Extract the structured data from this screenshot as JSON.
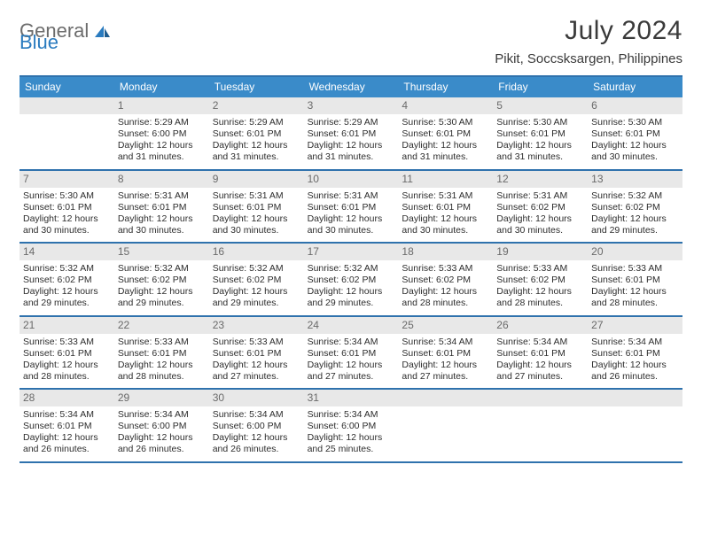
{
  "brand": {
    "word1": "General",
    "word2": "Blue"
  },
  "title": {
    "month": "July 2024",
    "location": "Pikit, Soccsksargen, Philippines"
  },
  "colors": {
    "header_bg": "#3a8bc9",
    "border": "#2f72ad",
    "daynum_bg": "#e8e8e8",
    "daynum_fg": "#6a6a6a",
    "text": "#2d2d2d",
    "logo_gray": "#6c6c6c",
    "logo_blue": "#2a7bbf"
  },
  "days_of_week": [
    "Sunday",
    "Monday",
    "Tuesday",
    "Wednesday",
    "Thursday",
    "Friday",
    "Saturday"
  ],
  "weeks": [
    [
      {
        "day": "",
        "empty": true
      },
      {
        "day": "1",
        "sunrise": "Sunrise: 5:29 AM",
        "sunset": "Sunset: 6:00 PM",
        "daylight1": "Daylight: 12 hours",
        "daylight2": "and 31 minutes."
      },
      {
        "day": "2",
        "sunrise": "Sunrise: 5:29 AM",
        "sunset": "Sunset: 6:01 PM",
        "daylight1": "Daylight: 12 hours",
        "daylight2": "and 31 minutes."
      },
      {
        "day": "3",
        "sunrise": "Sunrise: 5:29 AM",
        "sunset": "Sunset: 6:01 PM",
        "daylight1": "Daylight: 12 hours",
        "daylight2": "and 31 minutes."
      },
      {
        "day": "4",
        "sunrise": "Sunrise: 5:30 AM",
        "sunset": "Sunset: 6:01 PM",
        "daylight1": "Daylight: 12 hours",
        "daylight2": "and 31 minutes."
      },
      {
        "day": "5",
        "sunrise": "Sunrise: 5:30 AM",
        "sunset": "Sunset: 6:01 PM",
        "daylight1": "Daylight: 12 hours",
        "daylight2": "and 31 minutes."
      },
      {
        "day": "6",
        "sunrise": "Sunrise: 5:30 AM",
        "sunset": "Sunset: 6:01 PM",
        "daylight1": "Daylight: 12 hours",
        "daylight2": "and 30 minutes."
      }
    ],
    [
      {
        "day": "7",
        "sunrise": "Sunrise: 5:30 AM",
        "sunset": "Sunset: 6:01 PM",
        "daylight1": "Daylight: 12 hours",
        "daylight2": "and 30 minutes."
      },
      {
        "day": "8",
        "sunrise": "Sunrise: 5:31 AM",
        "sunset": "Sunset: 6:01 PM",
        "daylight1": "Daylight: 12 hours",
        "daylight2": "and 30 minutes."
      },
      {
        "day": "9",
        "sunrise": "Sunrise: 5:31 AM",
        "sunset": "Sunset: 6:01 PM",
        "daylight1": "Daylight: 12 hours",
        "daylight2": "and 30 minutes."
      },
      {
        "day": "10",
        "sunrise": "Sunrise: 5:31 AM",
        "sunset": "Sunset: 6:01 PM",
        "daylight1": "Daylight: 12 hours",
        "daylight2": "and 30 minutes."
      },
      {
        "day": "11",
        "sunrise": "Sunrise: 5:31 AM",
        "sunset": "Sunset: 6:01 PM",
        "daylight1": "Daylight: 12 hours",
        "daylight2": "and 30 minutes."
      },
      {
        "day": "12",
        "sunrise": "Sunrise: 5:31 AM",
        "sunset": "Sunset: 6:02 PM",
        "daylight1": "Daylight: 12 hours",
        "daylight2": "and 30 minutes."
      },
      {
        "day": "13",
        "sunrise": "Sunrise: 5:32 AM",
        "sunset": "Sunset: 6:02 PM",
        "daylight1": "Daylight: 12 hours",
        "daylight2": "and 29 minutes."
      }
    ],
    [
      {
        "day": "14",
        "sunrise": "Sunrise: 5:32 AM",
        "sunset": "Sunset: 6:02 PM",
        "daylight1": "Daylight: 12 hours",
        "daylight2": "and 29 minutes."
      },
      {
        "day": "15",
        "sunrise": "Sunrise: 5:32 AM",
        "sunset": "Sunset: 6:02 PM",
        "daylight1": "Daylight: 12 hours",
        "daylight2": "and 29 minutes."
      },
      {
        "day": "16",
        "sunrise": "Sunrise: 5:32 AM",
        "sunset": "Sunset: 6:02 PM",
        "daylight1": "Daylight: 12 hours",
        "daylight2": "and 29 minutes."
      },
      {
        "day": "17",
        "sunrise": "Sunrise: 5:32 AM",
        "sunset": "Sunset: 6:02 PM",
        "daylight1": "Daylight: 12 hours",
        "daylight2": "and 29 minutes."
      },
      {
        "day": "18",
        "sunrise": "Sunrise: 5:33 AM",
        "sunset": "Sunset: 6:02 PM",
        "daylight1": "Daylight: 12 hours",
        "daylight2": "and 28 minutes."
      },
      {
        "day": "19",
        "sunrise": "Sunrise: 5:33 AM",
        "sunset": "Sunset: 6:02 PM",
        "daylight1": "Daylight: 12 hours",
        "daylight2": "and 28 minutes."
      },
      {
        "day": "20",
        "sunrise": "Sunrise: 5:33 AM",
        "sunset": "Sunset: 6:01 PM",
        "daylight1": "Daylight: 12 hours",
        "daylight2": "and 28 minutes."
      }
    ],
    [
      {
        "day": "21",
        "sunrise": "Sunrise: 5:33 AM",
        "sunset": "Sunset: 6:01 PM",
        "daylight1": "Daylight: 12 hours",
        "daylight2": "and 28 minutes."
      },
      {
        "day": "22",
        "sunrise": "Sunrise: 5:33 AM",
        "sunset": "Sunset: 6:01 PM",
        "daylight1": "Daylight: 12 hours",
        "daylight2": "and 28 minutes."
      },
      {
        "day": "23",
        "sunrise": "Sunrise: 5:33 AM",
        "sunset": "Sunset: 6:01 PM",
        "daylight1": "Daylight: 12 hours",
        "daylight2": "and 27 minutes."
      },
      {
        "day": "24",
        "sunrise": "Sunrise: 5:34 AM",
        "sunset": "Sunset: 6:01 PM",
        "daylight1": "Daylight: 12 hours",
        "daylight2": "and 27 minutes."
      },
      {
        "day": "25",
        "sunrise": "Sunrise: 5:34 AM",
        "sunset": "Sunset: 6:01 PM",
        "daylight1": "Daylight: 12 hours",
        "daylight2": "and 27 minutes."
      },
      {
        "day": "26",
        "sunrise": "Sunrise: 5:34 AM",
        "sunset": "Sunset: 6:01 PM",
        "daylight1": "Daylight: 12 hours",
        "daylight2": "and 27 minutes."
      },
      {
        "day": "27",
        "sunrise": "Sunrise: 5:34 AM",
        "sunset": "Sunset: 6:01 PM",
        "daylight1": "Daylight: 12 hours",
        "daylight2": "and 26 minutes."
      }
    ],
    [
      {
        "day": "28",
        "sunrise": "Sunrise: 5:34 AM",
        "sunset": "Sunset: 6:01 PM",
        "daylight1": "Daylight: 12 hours",
        "daylight2": "and 26 minutes."
      },
      {
        "day": "29",
        "sunrise": "Sunrise: 5:34 AM",
        "sunset": "Sunset: 6:00 PM",
        "daylight1": "Daylight: 12 hours",
        "daylight2": "and 26 minutes."
      },
      {
        "day": "30",
        "sunrise": "Sunrise: 5:34 AM",
        "sunset": "Sunset: 6:00 PM",
        "daylight1": "Daylight: 12 hours",
        "daylight2": "and 26 minutes."
      },
      {
        "day": "31",
        "sunrise": "Sunrise: 5:34 AM",
        "sunset": "Sunset: 6:00 PM",
        "daylight1": "Daylight: 12 hours",
        "daylight2": "and 25 minutes."
      },
      {
        "day": "",
        "empty": true
      },
      {
        "day": "",
        "empty": true
      },
      {
        "day": "",
        "empty": true
      }
    ]
  ]
}
